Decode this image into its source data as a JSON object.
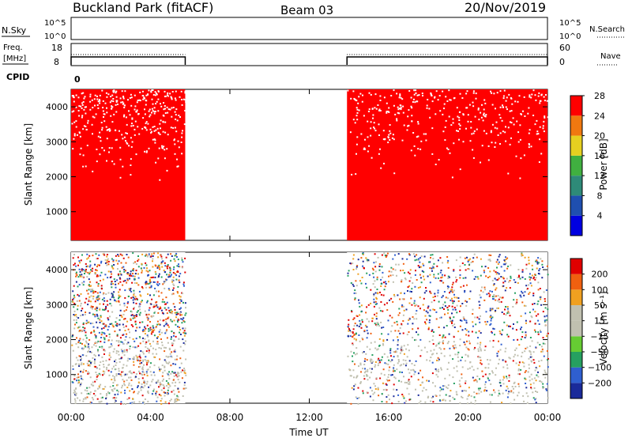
{
  "header": {
    "station": "Buckland Park (fitACF)",
    "beam": "Beam 03",
    "date": "20/Nov/2019"
  },
  "strips": {
    "nsky": {
      "label": "N.Sky",
      "ticks": [
        "10^5",
        "10^0"
      ],
      "right_ticks": [
        "10^5",
        "10^0"
      ],
      "right_label": "N.Search"
    },
    "freq": {
      "label_line1": "Freq.",
      "label_line2": "[MHz]",
      "ticks": [
        "18",
        "8"
      ],
      "right_ticks": [
        "60",
        "0"
      ],
      "right_label": "Nave",
      "segments": [
        {
          "start": 0.0,
          "end": 5.75
        },
        {
          "start": 13.9,
          "end": 24.0
        }
      ]
    },
    "cpid": {
      "label": "CPID",
      "value": "0"
    }
  },
  "x_axis": {
    "label": "Time UT",
    "range_hours": [
      0,
      24
    ],
    "ticks": [
      "00:00",
      "04:00",
      "08:00",
      "12:00",
      "16:00",
      "20:00",
      "00:00"
    ]
  },
  "chart_data": [
    {
      "type": "heatmap",
      "ylabel": "Slant Range [km]",
      "ylim": [
        180,
        4500
      ],
      "yticks": [
        "1000",
        "2000",
        "3000",
        "4000"
      ],
      "xlim_hours": [
        0,
        24
      ],
      "data_intervals_hours": [
        [
          0.0,
          5.75
        ],
        [
          13.9,
          24.0
        ]
      ],
      "colorbar": {
        "label": "Power [dB]",
        "ticks": [
          "4",
          "8",
          "12",
          "16",
          "20",
          "24",
          "28"
        ],
        "colors": [
          "#0000e0",
          "#1f4fb0",
          "#2e8a78",
          "#40b040",
          "#e6d020",
          "#f07810",
          "#ff0000"
        ]
      },
      "dominant_value": "28"
    },
    {
      "type": "heatmap",
      "ylabel": "Slant Range [km]",
      "ylim": [
        180,
        4500
      ],
      "yticks": [
        "1000",
        "2000",
        "3000",
        "4000"
      ],
      "xlim_hours": [
        0,
        24
      ],
      "data_intervals_hours": [
        [
          0.0,
          5.75
        ],
        [
          13.9,
          24.0
        ]
      ],
      "colorbar": {
        "label": "Velocity [m s⁻¹]",
        "ticks": [
          "200",
          "100",
          "50",
          "15",
          "−15",
          "−50",
          "−100",
          "−200"
        ],
        "colors": [
          "#1a2a9a",
          "#2f5fd0",
          "#26a060",
          "#66cc33",
          "#c0c0b0",
          "#c0c0b0",
          "#f0a020",
          "#f06010",
          "#e00000"
        ]
      }
    }
  ]
}
